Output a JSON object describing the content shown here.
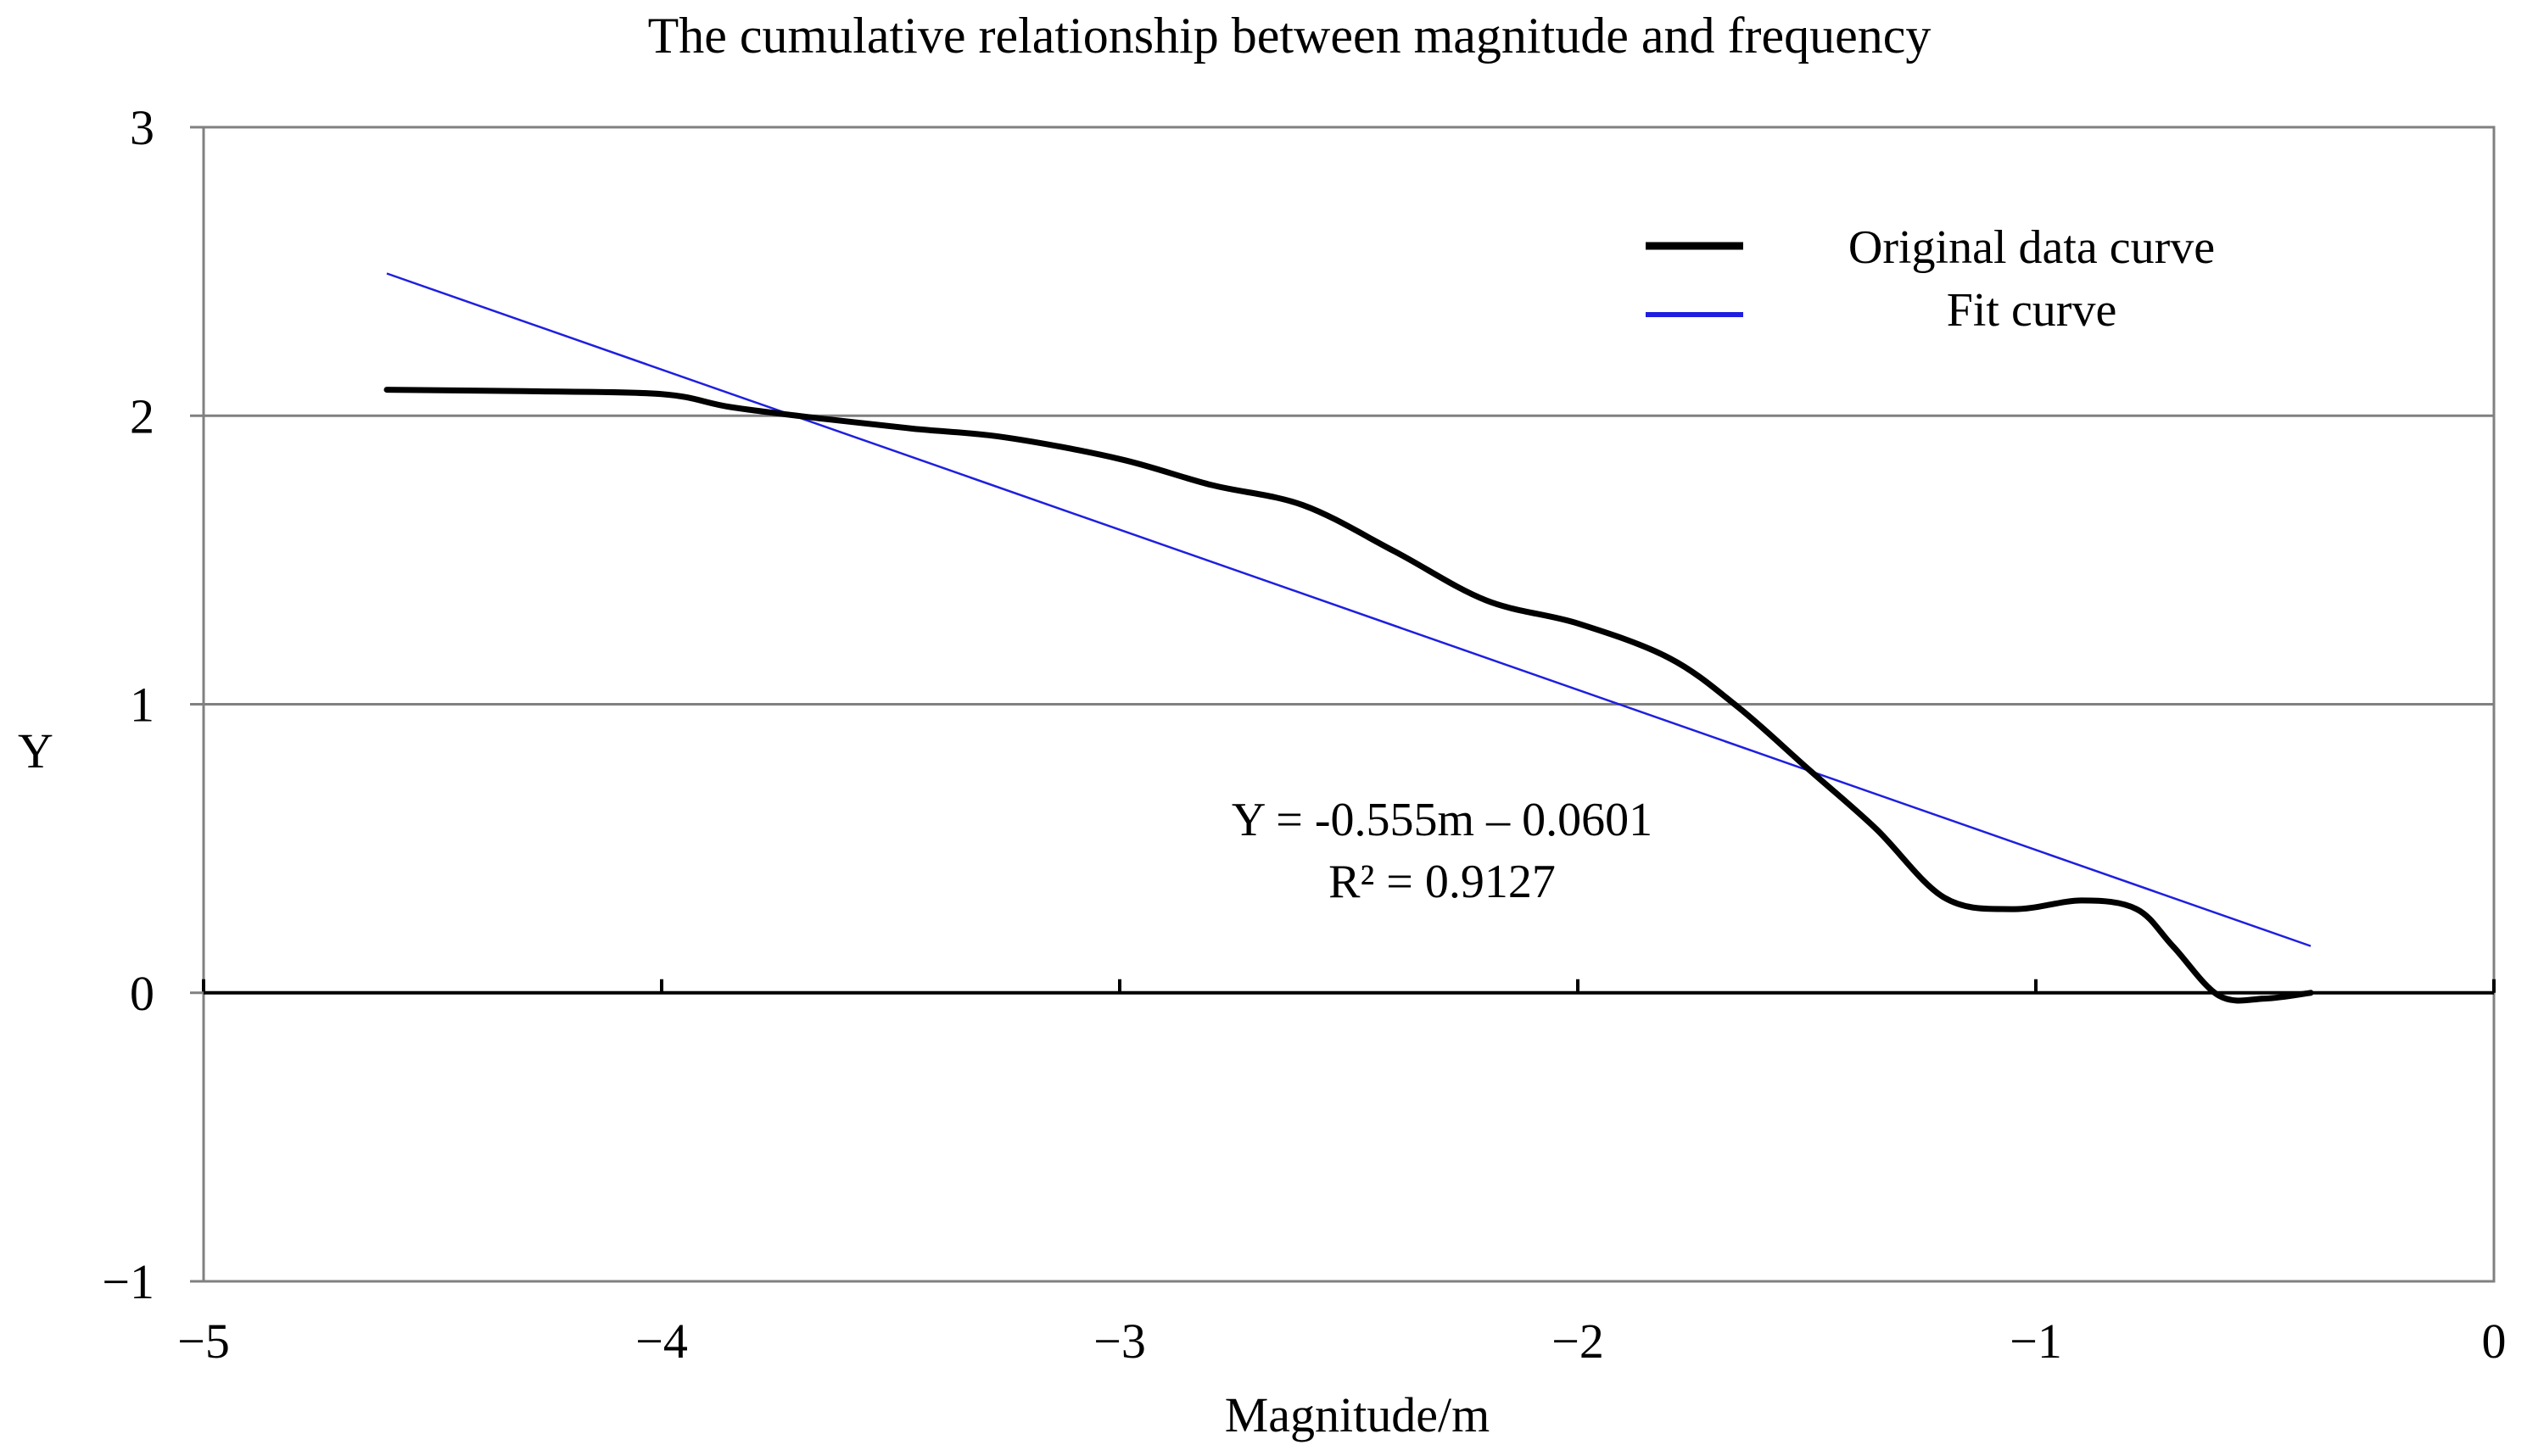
{
  "chart_data": {
    "type": "line",
    "title": "The cumulative relationship between magnitude and frequency",
    "xlabel": "Magnitude/m",
    "ylabel": "Y",
    "xlim": [
      -5,
      0
    ],
    "ylim": [
      -1,
      3
    ],
    "x_ticks": [
      -5,
      -4,
      -3,
      -2,
      -1,
      0
    ],
    "y_ticks": [
      -1,
      0,
      1,
      2,
      3
    ],
    "x_tick_labels": [
      "−5",
      "−4",
      "−3",
      "−2",
      "−1",
      "0"
    ],
    "y_tick_labels": [
      "−1",
      "0",
      "1",
      "2",
      "3"
    ],
    "grid": "horizontal",
    "legend": {
      "position": "top-right",
      "entries": [
        {
          "label": "Original data curve",
          "color": "#000000"
        },
        {
          "label": "Fit curve",
          "color": "#1f1fe0"
        }
      ]
    },
    "series": [
      {
        "name": "Original data curve",
        "color": "#000000",
        "x": [
          -4.6,
          -4.3,
          -4.0,
          -3.85,
          -3.65,
          -3.45,
          -3.25,
          -3.0,
          -2.8,
          -2.6,
          -2.4,
          -2.2,
          -2.0,
          -1.8,
          -1.65,
          -1.5,
          -1.35,
          -1.2,
          -1.05,
          -0.9,
          -0.78,
          -0.7,
          -0.6,
          -0.5,
          -0.4
        ],
        "y": [
          2.09,
          2.085,
          2.075,
          2.03,
          1.99,
          1.955,
          1.925,
          1.85,
          1.76,
          1.69,
          1.53,
          1.36,
          1.28,
          1.16,
          0.99,
          0.78,
          0.57,
          0.33,
          0.29,
          0.32,
          0.29,
          0.16,
          -0.01,
          -0.02,
          0.0
        ]
      },
      {
        "name": "Fit curve",
        "color": "#1f1fe0",
        "x": [
          -4.6,
          -0.4
        ],
        "y": [
          2.493,
          0.162
        ]
      }
    ],
    "annotations": [
      {
        "text": "Y = -0.555m – 0.0601"
      },
      {
        "text": "R² = 0.9127"
      }
    ]
  }
}
